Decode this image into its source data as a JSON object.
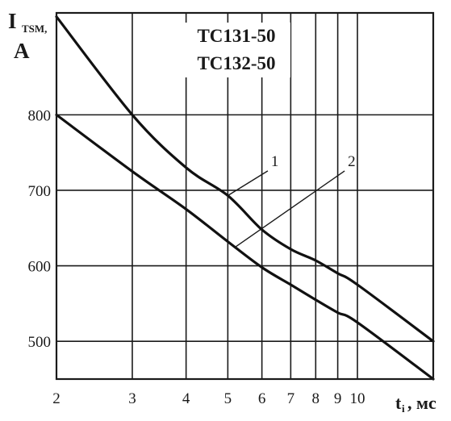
{
  "chart_data": {
    "type": "line",
    "title_lines": [
      "TC131-50",
      "TC132-50"
    ],
    "ylabel": {
      "main": "I",
      "sub": "TSM,",
      "unit": "A"
    },
    "xlabel": {
      "main": "t",
      "sub": "i",
      "unit": ", мс"
    },
    "x_scale": "log",
    "xlim": [
      2,
      15
    ],
    "ylim": [
      450,
      935
    ],
    "x_gridlines": [
      3,
      4,
      5,
      6,
      7,
      8,
      9,
      10
    ],
    "y_gridlines": [
      500,
      600,
      700,
      800
    ],
    "x_tick_labels": [
      "2",
      "3",
      "4",
      "5",
      "6",
      "7",
      "8",
      "9",
      "10"
    ],
    "y_tick_labels": [
      "500",
      "600",
      "700",
      "800"
    ],
    "grid": true,
    "series": [
      {
        "name": "1",
        "x": [
          2,
          3,
          4,
          5,
          6,
          7,
          8,
          9,
          10,
          15
        ],
        "y": [
          930,
          800,
          730,
          693,
          648,
          622,
          607,
          590,
          575,
          500
        ]
      },
      {
        "name": "2",
        "x": [
          2,
          3,
          4,
          5,
          6,
          7,
          8,
          9,
          10,
          15
        ],
        "y": [
          800,
          725,
          675,
          632,
          598,
          575,
          555,
          538,
          525,
          450
        ]
      }
    ],
    "callouts": [
      {
        "label": "1",
        "series": "1",
        "at_x": 5,
        "text_x": 6.3,
        "text_y": 730
      },
      {
        "label": "2",
        "series": "2",
        "at_x": 5.2,
        "text_x": 9.5,
        "text_y": 730
      }
    ]
  }
}
